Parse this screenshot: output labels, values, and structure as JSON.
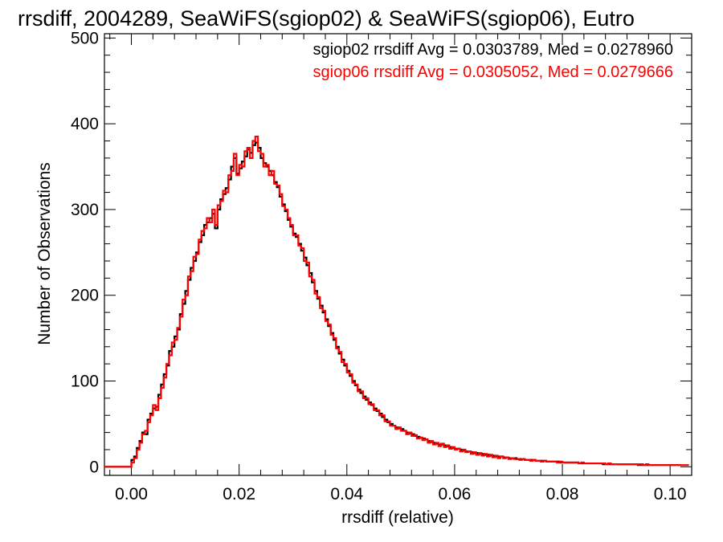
{
  "chart_data": {
    "type": "line",
    "step": true,
    "title": "rrsdiff, 2004289, SeaWiFS(sgiop02) & SeaWiFS(sgiop06), Eutro",
    "xlabel": "rrsdiff (relative)",
    "ylabel": "Number of Observations",
    "xlim": [
      -0.005,
      0.104
    ],
    "ylim": [
      -10,
      505
    ],
    "x_ticks": [
      0.0,
      0.02,
      0.04,
      0.06,
      0.08,
      0.1
    ],
    "x_tick_labels": [
      "0.00",
      "0.02",
      "0.04",
      "0.06",
      "0.08",
      "0.10"
    ],
    "y_ticks": [
      0,
      100,
      200,
      300,
      400,
      500
    ],
    "y_tick_labels": [
      "0",
      "100",
      "200",
      "300",
      "400",
      "500"
    ],
    "legend_position": "top-right",
    "bin_width": 0.0005,
    "x_start": -0.005,
    "series": [
      {
        "name": "sgiop02",
        "color": "#000000",
        "legend": "sgiop02 rrsdiff Avg = 0.0303789, Med = 0.0278960",
        "values": [
          0,
          0,
          0,
          0,
          0,
          0,
          0,
          0,
          0,
          0,
          8,
          12,
          22,
          30,
          40,
          38,
          55,
          62,
          68,
          70,
          84,
          96,
          108,
          118,
          135,
          140,
          152,
          160,
          178,
          190,
          205,
          218,
          232,
          240,
          250,
          262,
          270,
          282,
          285,
          290,
          295,
          278,
          300,
          312,
          318,
          325,
          335,
          350,
          360,
          342,
          348,
          356,
          362,
          370,
          366,
          375,
          378,
          372,
          360,
          354,
          350,
          345,
          340,
          332,
          326,
          315,
          306,
          298,
          288,
          280,
          272,
          268,
          260,
          252,
          244,
          235,
          226,
          215,
          205,
          196,
          188,
          180,
          172,
          164,
          156,
          148,
          140,
          132,
          125,
          118,
          112,
          106,
          100,
          95,
          90,
          86,
          82,
          78,
          75,
          72,
          68,
          65,
          62,
          58,
          55,
          52,
          50,
          48,
          46,
          45,
          44,
          42,
          40,
          39,
          38,
          36,
          35,
          34,
          33,
          32,
          30,
          29,
          28,
          27,
          26,
          26,
          25,
          24,
          23,
          22,
          21,
          21,
          20,
          19,
          18,
          18,
          17,
          16,
          16,
          15,
          15,
          14,
          14,
          13,
          13,
          12,
          12,
          12,
          11,
          11,
          10,
          10,
          10,
          9,
          9,
          9,
          8,
          8,
          8,
          8,
          7,
          7,
          7,
          7,
          6,
          6,
          6,
          6,
          6,
          5,
          5,
          5,
          5,
          5,
          5,
          5,
          4,
          4,
          4,
          4,
          4,
          4,
          4,
          4,
          4,
          3,
          3,
          3,
          3,
          3,
          3,
          3,
          3,
          3,
          3,
          3,
          3,
          3,
          2,
          2,
          2,
          2,
          2,
          2,
          2,
          2,
          2,
          2,
          2,
          2,
          2,
          2,
          2,
          2
        ]
      },
      {
        "name": "sgiop06",
        "color": "#ff0000",
        "legend": "sgiop06 rrsdiff Avg = 0.0305052, Med = 0.0279666",
        "values": [
          0,
          0,
          0,
          0,
          0,
          0,
          0,
          0,
          0,
          0,
          5,
          10,
          20,
          28,
          38,
          42,
          52,
          60,
          72,
          66,
          80,
          92,
          104,
          120,
          130,
          145,
          148,
          162,
          175,
          195,
          200,
          222,
          228,
          245,
          248,
          265,
          275,
          278,
          290,
          285,
          300,
          282,
          305,
          310,
          322,
          320,
          340,
          345,
          365,
          340,
          352,
          350,
          368,
          372,
          360,
          380,
          385,
          368,
          365,
          350,
          352,
          340,
          345,
          330,
          328,
          318,
          304,
          300,
          290,
          282,
          270,
          270,
          258,
          255,
          240,
          238,
          222,
          218,
          202,
          198,
          185,
          182,
          170,
          166,
          154,
          150,
          138,
          134,
          122,
          120,
          110,
          108,
          98,
          96,
          88,
          88,
          80,
          80,
          73,
          73,
          66,
          66,
          60,
          60,
          53,
          53,
          48,
          48,
          44,
          46,
          42,
          42,
          38,
          40,
          36,
          37,
          33,
          34,
          31,
          32,
          28,
          30,
          26,
          28,
          24,
          27,
          23,
          25,
          21,
          23,
          20,
          21,
          18,
          20,
          17,
          18,
          15,
          17,
          14,
          16,
          13,
          15,
          12,
          14,
          11,
          13,
          10,
          12,
          10,
          11,
          9,
          10,
          9,
          9,
          8,
          9,
          8,
          8,
          7,
          8,
          7,
          7,
          6,
          7,
          6,
          6,
          6,
          6,
          5,
          6,
          5,
          5,
          5,
          5,
          5,
          5,
          4,
          5,
          4,
          4,
          4,
          4,
          4,
          4,
          4,
          4,
          3,
          4,
          3,
          3,
          3,
          3,
          3,
          3,
          3,
          3,
          3,
          3,
          3,
          3,
          2,
          3,
          2,
          2,
          2,
          2,
          2,
          2,
          2,
          2,
          2,
          2,
          2,
          2,
          2,
          2,
          2
        ]
      }
    ]
  }
}
